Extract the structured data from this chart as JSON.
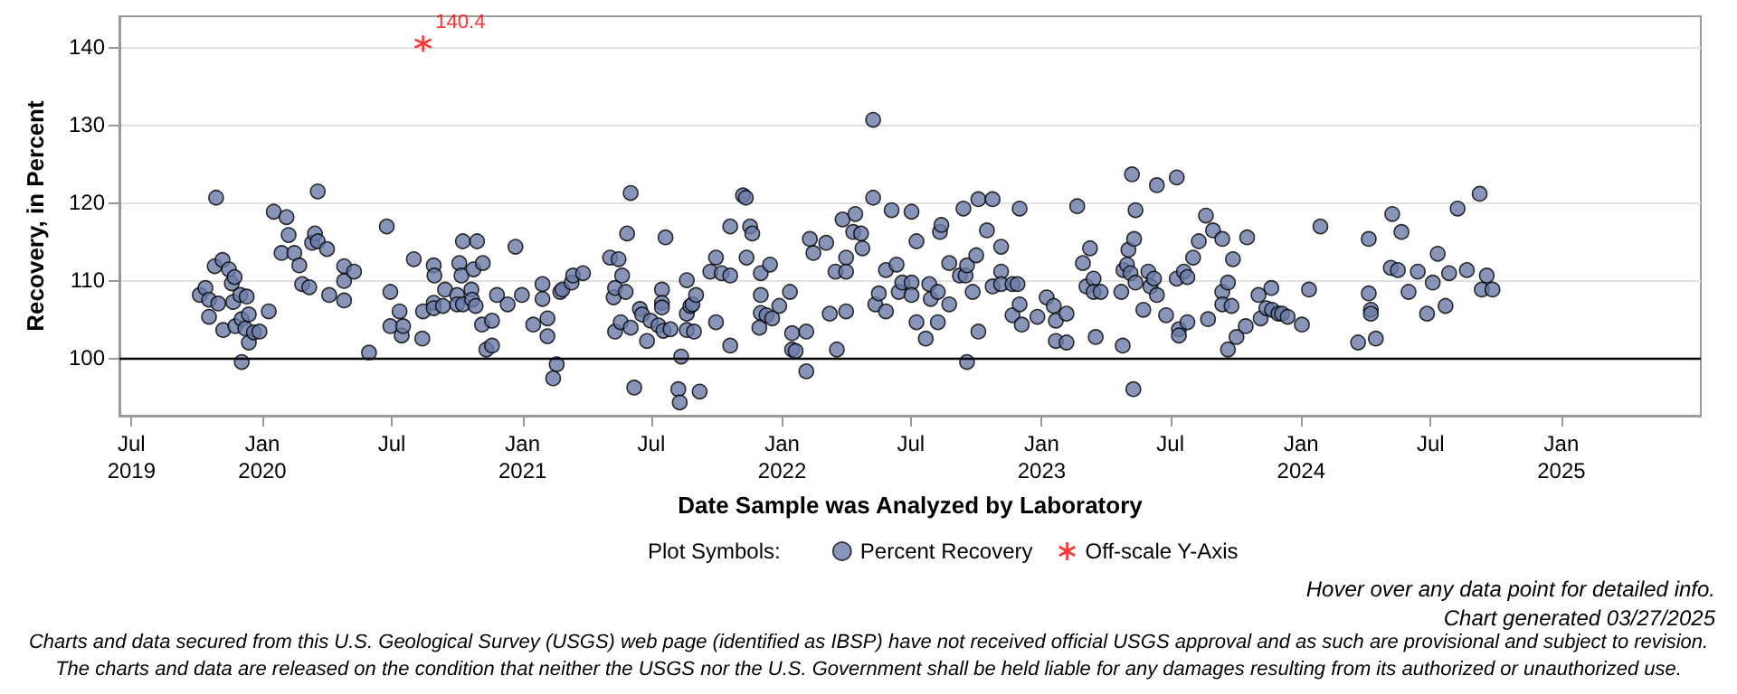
{
  "chart_data": {
    "type": "scatter",
    "xlabel": "Date Sample was Analyzed by Laboratory",
    "ylabel": "Recovery, in Percent",
    "legend_title": "Plot Symbols:",
    "legend": "bottom",
    "grid": "y",
    "xlim": [
      "2019-06-14",
      "2025-07-16"
    ],
    "ylim": [
      92.6,
      143.9
    ],
    "xticks": [
      {
        "value": "2019-07-01",
        "label": "Jul\n2019"
      },
      {
        "value": "2020-01-01",
        "label": "Jan\n2020"
      },
      {
        "value": "2020-07-01",
        "label": "Jul"
      },
      {
        "value": "2021-01-01",
        "label": "Jan\n2021"
      },
      {
        "value": "2021-07-01",
        "label": "Jul"
      },
      {
        "value": "2022-01-01",
        "label": "Jan\n2022"
      },
      {
        "value": "2022-07-01",
        "label": "Jul"
      },
      {
        "value": "2023-01-01",
        "label": "Jan\n2023"
      },
      {
        "value": "2023-07-01",
        "label": "Jul"
      },
      {
        "value": "2024-01-01",
        "label": "Jan\n2024"
      },
      {
        "value": "2024-07-01",
        "label": "Jul"
      },
      {
        "value": "2025-01-01",
        "label": "Jan\n2025"
      }
    ],
    "yticks": [
      100,
      110,
      120,
      130,
      140
    ],
    "ref_lines": [
      {
        "axis": "y",
        "value": 100,
        "color": "#000000"
      }
    ],
    "annotations": [
      "Hover over any data point for detailed info.",
      "Chart generated 03/27/2025",
      "Charts and data secured from this U.S. Geological Survey (USGS) web page (identified as IBSP) have not received official USGS approval and as such are provisional and subject to revision.",
      "The charts and data are released on the condition that neither the USGS nor the U.S. Government shall be held liable for any damages resulting from its authorized or unauthorized use."
    ],
    "series": [
      {
        "name": "Percent Recovery",
        "color": "#6a7aa8",
        "marker": "circle",
        "x": [
          "2019-10-05",
          "2019-10-13",
          "2019-10-18",
          "2019-10-18",
          "2019-10-28",
          "2019-10-26",
          "2019-10-31",
          "2019-11-06",
          "2019-11-07",
          "2019-11-15",
          "2019-11-19",
          "2019-11-23",
          "2019-11-21",
          "2019-11-24",
          "2019-12-01",
          "2019-12-03",
          "2019-12-03",
          "2019-12-08",
          "2019-12-10",
          "2019-12-13",
          "2019-12-13",
          "2019-12-20",
          "2019-12-28",
          "2020-01-10",
          "2020-01-17",
          "2020-01-28",
          "2020-02-04",
          "2020-02-07",
          "2020-02-15",
          "2020-02-22",
          "2020-02-26",
          "2020-03-07",
          "2020-03-11",
          "2020-03-15",
          "2020-03-19",
          "2020-03-19",
          "2020-04-01",
          "2020-04-04",
          "2020-04-25",
          "2020-04-25",
          "2020-04-25",
          "2020-05-09",
          "2020-05-30",
          "2020-06-24",
          "2020-06-29",
          "2020-06-29",
          "2020-07-12",
          "2020-07-15",
          "2020-07-17",
          "2020-08-01",
          "2020-08-13",
          "2020-08-14",
          "2020-08-29",
          "2020-08-30",
          "2020-08-29",
          "2020-08-29",
          "2020-09-11",
          "2020-09-14",
          "2020-10-01",
          "2020-10-04",
          "2020-10-07",
          "2020-10-09",
          "2020-10-01",
          "2020-10-09",
          "2020-10-21",
          "2020-10-22",
          "2020-10-24",
          "2020-10-27",
          "2020-10-29",
          "2020-11-06",
          "2020-11-05",
          "2020-11-11",
          "2020-11-19",
          "2020-11-19",
          "2020-11-26",
          "2020-12-11",
          "2020-12-22",
          "2020-12-31",
          "2021-01-16",
          "2021-01-29",
          "2021-01-29",
          "2021-02-05",
          "2021-02-05",
          "2021-02-18",
          "2021-02-13",
          "2021-02-23",
          "2021-02-26",
          "2021-03-11",
          "2021-03-13",
          "2021-03-27",
          "2021-05-04",
          "2021-05-16",
          "2021-05-09",
          "2021-05-11",
          "2021-05-21",
          "2021-05-26",
          "2021-05-11",
          "2021-05-19",
          "2021-05-28",
          "2021-06-02",
          "2021-06-02",
          "2021-06-07",
          "2021-06-15",
          "2021-06-18",
          "2021-06-25",
          "2021-06-30",
          "2021-07-11",
          "2021-07-16",
          "2021-07-16",
          "2021-07-16",
          "2021-07-18",
          "2021-07-21",
          "2021-07-28",
          "2021-08-08",
          "2021-08-10",
          "2021-08-12",
          "2021-08-20",
          "2021-08-20",
          "2021-08-20",
          "2021-08-25",
          "2021-08-28",
          "2021-09-02",
          "2021-08-30",
          "2021-09-07",
          "2021-09-22",
          "2021-09-30",
          "2021-09-30",
          "2021-10-08",
          "2021-10-20",
          "2021-10-20",
          "2021-10-20",
          "2021-11-07",
          "2021-11-11",
          "2021-11-12",
          "2021-11-17",
          "2021-11-20",
          "2021-11-30",
          "2021-12-02",
          "2021-12-02",
          "2021-12-02",
          "2021-12-10",
          "2021-12-15",
          "2021-12-18",
          "2021-12-28",
          "2022-01-12",
          "2022-01-15",
          "2022-01-15",
          "2022-01-20",
          "2022-02-04",
          "2022-02-04",
          "2022-02-09",
          "2022-02-14",
          "2022-03-04",
          "2022-03-09",
          "2022-03-17",
          "2022-03-19",
          "2022-03-27",
          "2022-04-01",
          "2022-04-01",
          "2022-04-01",
          "2022-04-14",
          "2022-04-11",
          "2022-04-22",
          "2022-04-24",
          "2022-05-09",
          "2022-05-09",
          "2022-05-12",
          "2022-05-17",
          "2022-05-27",
          "2022-05-27",
          "2022-06-04",
          "2022-06-11",
          "2022-06-14",
          "2022-06-19",
          "2022-07-02",
          "2022-07-02",
          "2022-07-02",
          "2022-07-09",
          "2022-07-09",
          "2022-07-22",
          "2022-07-27",
          "2022-07-29",
          "2022-08-08",
          "2022-08-08",
          "2022-08-11",
          "2022-08-13",
          "2022-08-24",
          "2022-08-24",
          "2022-09-08",
          "2022-09-13",
          "2022-09-16",
          "2022-09-18",
          "2022-09-18",
          "2022-09-26",
          "2022-10-01",
          "2022-10-04",
          "2022-10-04",
          "2022-10-16",
          "2022-10-24",
          "2022-10-24",
          "2022-11-05",
          "2022-11-05",
          "2022-11-05",
          "2022-11-21",
          "2022-11-21",
          "2022-11-28",
          "2022-12-01",
          "2022-12-01",
          "2022-12-04",
          "2022-12-26",
          "2023-01-08",
          "2023-01-18",
          "2023-01-21",
          "2023-01-21",
          "2023-02-05",
          "2023-02-05",
          "2023-02-20",
          "2023-02-28",
          "2023-03-05",
          "2023-03-10",
          "2023-03-15",
          "2023-03-15",
          "2023-03-18",
          "2023-03-25",
          "2023-04-25",
          "2023-04-23",
          "2023-04-26",
          "2023-05-01",
          "2023-05-03",
          "2023-05-06",
          "2023-05-08",
          "2023-05-11",
          "2023-05-13",
          "2023-05-13",
          "2023-05-10",
          "2023-05-24",
          "2023-05-31",
          "2023-06-03",
          "2023-06-08",
          "2023-06-12",
          "2023-06-12",
          "2023-06-25",
          "2023-07-10",
          "2023-07-10",
          "2023-07-13",
          "2023-07-13",
          "2023-07-20",
          "2023-07-25",
          "2023-07-25",
          "2023-08-02",
          "2023-08-10",
          "2023-08-20",
          "2023-08-23",
          "2023-08-30",
          "2023-09-12",
          "2023-09-12",
          "2023-09-12",
          "2023-09-20",
          "2023-09-20",
          "2023-09-25",
          "2023-09-27",
          "2023-10-02",
          "2023-10-15",
          "2023-10-17",
          "2023-11-02",
          "2023-11-05",
          "2023-11-13",
          "2023-11-20",
          "2023-11-21",
          "2023-11-30",
          "2023-12-05",
          "2023-12-13",
          "2024-01-02",
          "2024-01-12",
          "2024-01-28",
          "2024-03-21",
          "2024-04-05",
          "2024-04-05",
          "2024-04-08",
          "2024-04-08",
          "2024-04-15",
          "2024-05-08",
          "2024-05-06",
          "2024-05-16",
          "2024-05-21",
          "2024-05-31",
          "2024-06-13",
          "2024-06-26",
          "2024-07-04",
          "2024-07-11",
          "2024-07-22",
          "2024-07-27",
          "2024-08-08",
          "2024-08-21",
          "2024-09-08",
          "2024-09-11",
          "2024-09-18",
          "2024-09-26"
        ],
        "values": [
          108.1,
          109.0,
          107.5,
          105.3,
          120.6,
          111.8,
          107.0,
          112.6,
          103.6,
          111.4,
          109.6,
          110.4,
          107.2,
          104.1,
          108.1,
          99.5,
          105.0,
          103.8,
          107.9,
          105.6,
          102.0,
          103.3,
          103.4,
          106.0,
          118.8,
          113.5,
          118.1,
          115.8,
          113.5,
          111.9,
          109.5,
          109.1,
          114.8,
          116.0,
          121.4,
          115.0,
          114.0,
          108.1,
          111.8,
          109.9,
          107.4,
          111.1,
          100.7,
          116.9,
          108.5,
          104.1,
          106.0,
          102.9,
          104.1,
          112.7,
          102.5,
          106.0,
          111.9,
          110.6,
          107.1,
          106.4,
          106.7,
          108.8,
          108.1,
          112.2,
          110.6,
          115.0,
          106.9,
          106.9,
          108.8,
          107.5,
          111.4,
          106.7,
          115.0,
          112.2,
          104.3,
          101.1,
          104.8,
          101.6,
          108.1,
          106.9,
          114.3,
          108.1,
          104.3,
          109.5,
          107.6,
          105.1,
          102.8,
          99.2,
          97.4,
          108.5,
          108.8,
          109.7,
          110.6,
          110.9,
          112.9,
          112.7,
          107.8,
          109.0,
          110.6,
          108.5,
          103.4,
          104.6,
          116.0,
          121.2,
          103.9,
          96.2,
          106.3,
          105.6,
          102.2,
          104.8,
          104.2,
          108.8,
          107.1,
          106.5,
          103.5,
          115.5,
          103.7,
          96.0,
          94.3,
          100.2,
          110.0,
          105.7,
          103.6,
          106.7,
          106.9,
          108.1,
          103.4,
          95.7,
          111.1,
          112.9,
          104.6,
          110.9,
          116.9,
          110.6,
          101.6,
          120.9,
          120.6,
          112.9,
          116.9,
          116.0,
          103.9,
          110.9,
          108.1,
          105.8,
          105.5,
          112.0,
          105.1,
          106.7,
          108.5,
          103.2,
          101.1,
          100.9,
          103.4,
          98.3,
          115.3,
          113.5,
          114.8,
          105.7,
          111.1,
          101.1,
          117.8,
          112.9,
          111.1,
          106.0,
          118.5,
          116.2,
          116.0,
          114.1,
          130.6,
          120.6,
          106.9,
          108.3,
          106.0,
          111.3,
          119.0,
          112.0,
          108.5,
          109.7,
          109.7,
          108.1,
          118.8,
          115.0,
          104.6,
          102.5,
          109.5,
          107.6,
          108.5,
          104.6,
          116.2,
          117.1,
          112.2,
          106.9,
          110.6,
          119.2,
          110.6,
          111.9,
          99.5,
          108.5,
          113.2,
          120.4,
          103.4,
          116.4,
          120.4,
          109.2,
          114.3,
          111.1,
          109.5,
          109.5,
          105.5,
          109.5,
          119.2,
          106.9,
          104.3,
          105.3,
          107.8,
          106.7,
          104.8,
          102.2,
          105.7,
          102.0,
          119.5,
          112.2,
          109.2,
          114.1,
          110.2,
          108.5,
          102.7,
          108.5,
          101.6,
          108.5,
          111.3,
          112.0,
          113.9,
          110.9,
          123.6,
          115.3,
          119.0,
          109.7,
          96.0,
          106.2,
          111.1,
          109.2,
          110.2,
          122.2,
          108.1,
          105.5,
          123.2,
          110.2,
          103.7,
          102.9,
          111.1,
          110.4,
          104.6,
          112.9,
          115.0,
          118.3,
          105.0,
          116.4,
          115.3,
          108.5,
          106.9,
          109.7,
          101.1,
          106.7,
          112.7,
          102.7,
          104.1,
          115.5,
          108.1,
          105.1,
          106.4,
          109.0,
          106.2,
          105.7,
          105.7,
          105.3,
          104.3,
          108.8,
          116.9,
          102.0,
          115.3,
          108.3,
          106.2,
          105.7,
          102.5,
          118.5,
          111.6,
          111.3,
          116.2,
          108.5,
          111.1,
          105.7,
          109.7,
          113.4,
          106.7,
          110.9,
          119.2,
          111.3,
          121.1,
          108.8,
          110.6,
          108.8
        ]
      },
      {
        "name": "Off-scale Y-Axis",
        "color": "#ff0000",
        "marker": "cross",
        "x": [
          "2020-08-14"
        ],
        "values": [
          140.4
        ],
        "value_labels": [
          "140.4"
        ]
      }
    ]
  }
}
